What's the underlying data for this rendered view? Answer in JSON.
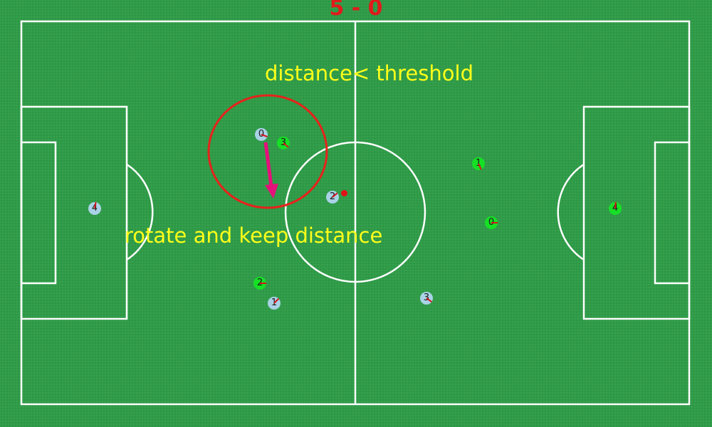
{
  "score": "5 - 0",
  "annotations": {
    "threshold": "distance< threshold",
    "rotate": "rotate and keep distance"
  },
  "colors": {
    "pitch": "#2f9c48",
    "lines": "#ffffff",
    "score": "#e01b1b",
    "annotation_text": "#ffff1a",
    "highlight_circle": "#e5231b",
    "arrow": "#e5117a",
    "team_blue": "#a9d2e6",
    "team_green": "#16e026",
    "heading_marker": "#d8141c",
    "ball": "#e01016"
  },
  "teams": {
    "blue": [
      {
        "number": "0",
        "heading_deg": 20
      },
      {
        "number": "1",
        "heading_deg": -45
      },
      {
        "number": "2",
        "heading_deg": -40
      },
      {
        "number": "3",
        "heading_deg": 35
      },
      {
        "number": "4",
        "heading_deg": -80
      }
    ],
    "green": [
      {
        "number": "0",
        "heading_deg": 0
      },
      {
        "number": "1",
        "heading_deg": 65
      },
      {
        "number": "2",
        "heading_deg": 0
      },
      {
        "number": "3",
        "heading_deg": 40
      },
      {
        "number": "4",
        "heading_deg": -85
      }
    ]
  }
}
